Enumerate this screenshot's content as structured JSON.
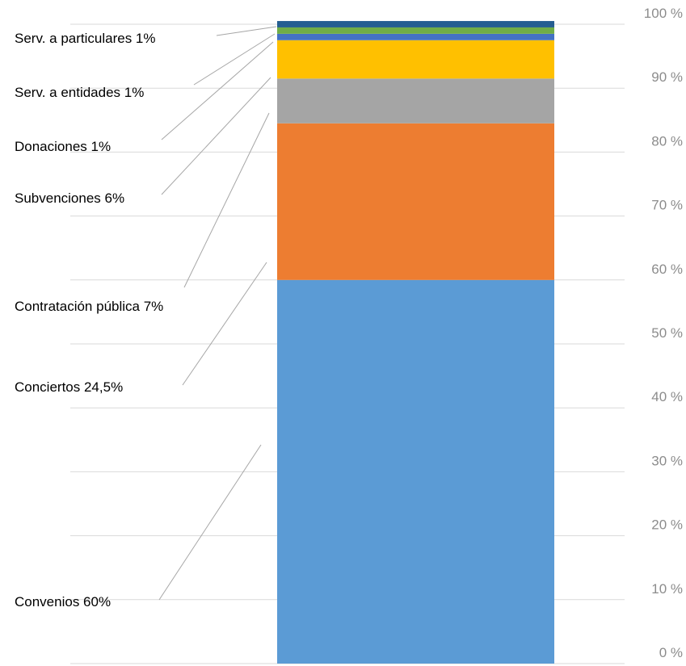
{
  "chart_data": {
    "type": "bar",
    "stacked": true,
    "categories": [
      ""
    ],
    "series": [
      {
        "name": "Convenios",
        "value": 60,
        "label": "Convenios  60%",
        "color": "#5b9bd5"
      },
      {
        "name": "Conciertos",
        "value": 24.5,
        "label": "Conciertos  24,5%",
        "color": "#ed7d31"
      },
      {
        "name": "Contratación pública",
        "value": 7,
        "label": "Contratación pública  7%",
        "color": "#a5a5a5"
      },
      {
        "name": "Subvenciones",
        "value": 6,
        "label": "Subvenciones  6%",
        "color": "#ffc000"
      },
      {
        "name": "Donaciones",
        "value": 1,
        "label": "Donaciones  1%",
        "color": "#4472c4"
      },
      {
        "name": "Serv. a entidades",
        "value": 1,
        "label": "Serv. a entidades  1%",
        "color": "#70ad47"
      },
      {
        "name": "Serv. a particulares",
        "value": 1,
        "label": "Serv. a particulares  1%",
        "color": "#255e91"
      }
    ],
    "y_axis": {
      "min": 0,
      "max": 100,
      "step": 10,
      "position": "right",
      "tick_labels": [
        "0 %",
        "10 %",
        "20 %",
        "30 %",
        "40 %",
        "50 %",
        "60 %",
        "70 %",
        "80 %",
        "90 %",
        "100 %"
      ]
    },
    "grid": true,
    "legend": "none",
    "title": "",
    "xlabel": "",
    "ylabel": ""
  }
}
